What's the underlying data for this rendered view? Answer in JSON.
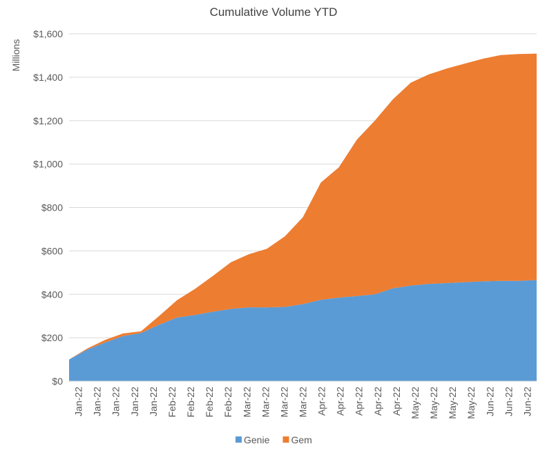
{
  "chart_data": {
    "type": "area",
    "stacked": true,
    "title": "Cumulative Volume YTD",
    "xlabel": "",
    "ylabel": "Millions",
    "ylim": [
      0,
      1600
    ],
    "y_ticks": [
      "$0",
      "$200",
      "$400",
      "$600",
      "$800",
      "$1,000",
      "$1,200",
      "$1,400",
      "$1,600"
    ],
    "x_ticks": [
      "Jan-22",
      "Jan-22",
      "Jan-22",
      "Jan-22",
      "Jan-22",
      "Feb-22",
      "Feb-22",
      "Feb-22",
      "Feb-22",
      "Mar-22",
      "Mar-22",
      "Mar-22",
      "Mar-22",
      "Apr-22",
      "Apr-22",
      "Apr-22",
      "Apr-22",
      "Apr-22",
      "May-22",
      "May-22",
      "May-22",
      "May-22",
      "Jun-22",
      "Jun-22",
      "Jun-22"
    ],
    "grid": true,
    "legend": "bottom",
    "colors": {
      "Genie": "#5b9bd5",
      "Gem": "#ed7d31"
    },
    "x": [
      0,
      1,
      2,
      3,
      4,
      5,
      6,
      7,
      8,
      9,
      10,
      11,
      12,
      13,
      14,
      15,
      16,
      17,
      18,
      19,
      20,
      21,
      22,
      23,
      24,
      25,
      26
    ],
    "series": [
      {
        "name": "Genie",
        "values": [
          100,
          145,
          178,
          208,
          222,
          260,
          293,
          305,
          320,
          333,
          340,
          340,
          342,
          355,
          375,
          385,
          392,
          400,
          428,
          440,
          448,
          452,
          456,
          460,
          462,
          462,
          466
        ]
      },
      {
        "name": "Gem",
        "values": [
          0,
          5,
          12,
          12,
          8,
          40,
          80,
          120,
          165,
          215,
          245,
          270,
          325,
          400,
          540,
          600,
          720,
          800,
          870,
          935,
          965,
          988,
          1007,
          1025,
          1040,
          1045,
          1043
        ]
      }
    ]
  }
}
